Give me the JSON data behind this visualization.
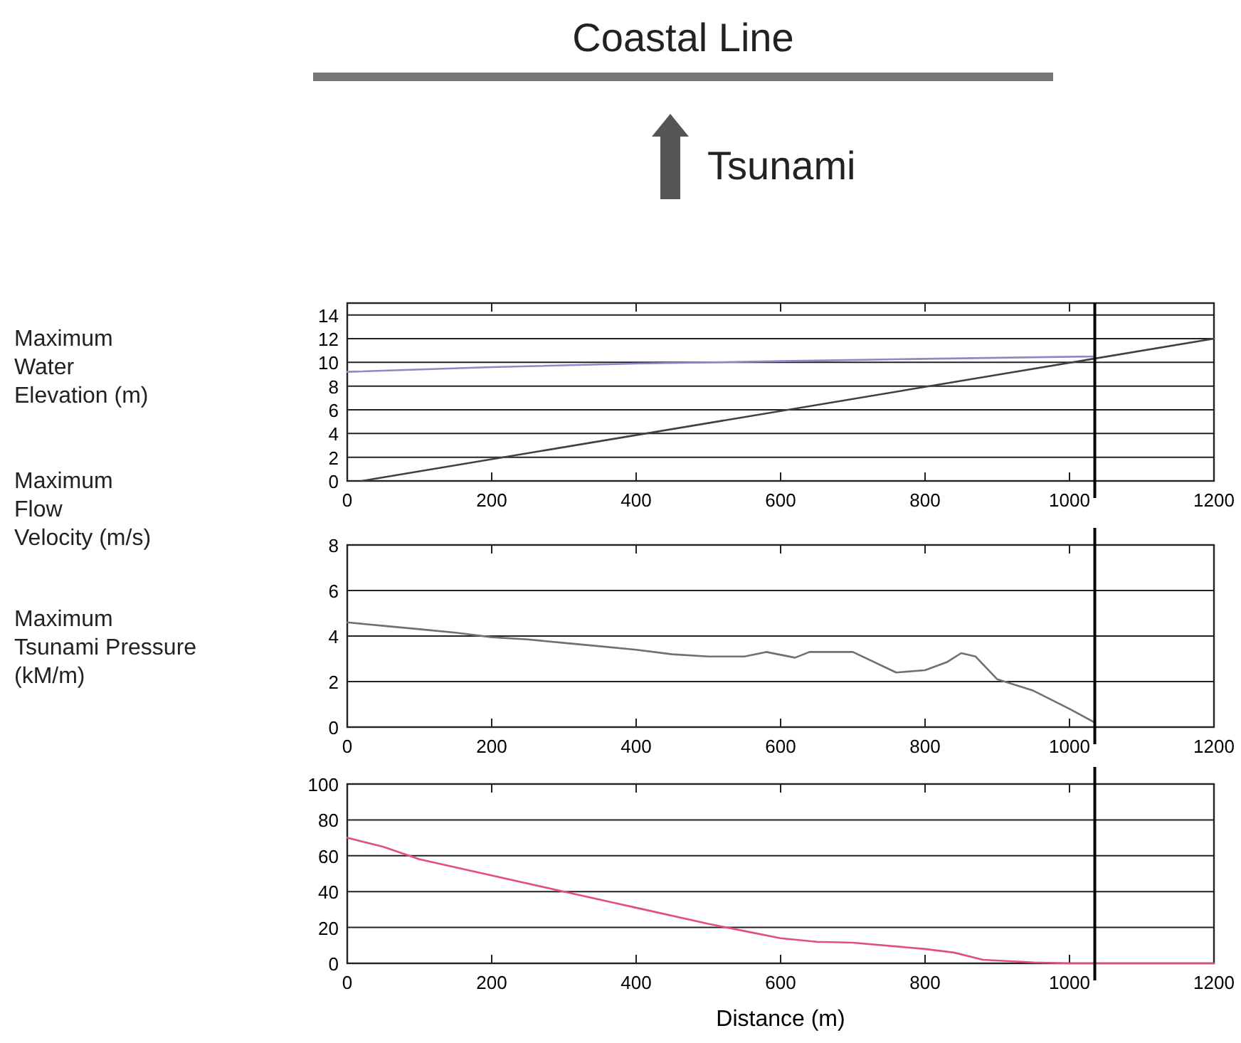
{
  "chart_data": [
    {
      "type": "line",
      "ylabel": "Maximum Water Elevation (m)",
      "annotations": [
        "Coastal Line",
        "Tsunami"
      ],
      "xlim": [
        0,
        1200
      ],
      "xticks": [
        0,
        200,
        400,
        600,
        800,
        1000,
        1200
      ],
      "ylim": [
        0,
        15
      ],
      "yticks": [
        0,
        2,
        4,
        6,
        8,
        10,
        12,
        14
      ],
      "grid": "y",
      "marker": "none",
      "line_style": "solid",
      "series": [
        {
          "color": "#8a8ac8",
          "x": [
            0,
            200,
            400,
            600,
            800,
            1035
          ],
          "values": [
            9.2,
            9.6,
            9.9,
            10.1,
            10.3,
            10.5
          ]
        },
        {
          "color": "#404040",
          "x": [
            20,
            1200
          ],
          "values": [
            0,
            12
          ]
        }
      ],
      "ref_lines": [
        {
          "axis": "x",
          "value": 1035,
          "color": "#000000"
        }
      ]
    },
    {
      "type": "line",
      "ylabel": "Maximum Flow Velocity (m/s)",
      "xlim": [
        0,
        1200
      ],
      "xticks": [
        0,
        200,
        400,
        600,
        800,
        1000,
        1200
      ],
      "ylim": [
        0,
        8
      ],
      "yticks": [
        0,
        2,
        4,
        6,
        8
      ],
      "grid": "y",
      "marker": "none",
      "line_style": "solid",
      "series": [
        {
          "color": "#707070",
          "x": [
            0,
            50,
            100,
            150,
            200,
            250,
            300,
            350,
            400,
            450,
            500,
            550,
            580,
            620,
            640,
            700,
            760,
            800,
            830,
            850,
            870,
            900,
            950,
            1000,
            1035
          ],
          "values": [
            4.6,
            4.45,
            4.3,
            4.15,
            3.95,
            3.85,
            3.7,
            3.55,
            3.4,
            3.2,
            3.1,
            3.1,
            3.3,
            3.05,
            3.3,
            3.3,
            2.4,
            2.5,
            2.85,
            3.25,
            3.1,
            2.1,
            1.6,
            0.8,
            0.2
          ]
        }
      ],
      "ref_lines": [
        {
          "axis": "x",
          "value": 1035,
          "color": "#000000"
        }
      ]
    },
    {
      "type": "line",
      "ylabel": "Maximum Tsunami Pressure (kM/m)",
      "xlabel": "Distance (m)",
      "xlim": [
        0,
        1200
      ],
      "xticks": [
        0,
        200,
        400,
        600,
        800,
        1000,
        1200
      ],
      "ylim": [
        0,
        100
      ],
      "yticks": [
        0,
        20,
        40,
        60,
        80,
        100
      ],
      "grid": "y",
      "marker": "none",
      "line_style": "solid",
      "series": [
        {
          "color": "#e0507a",
          "x": [
            0,
            50,
            100,
            200,
            300,
            400,
            500,
            550,
            600,
            650,
            700,
            800,
            840,
            880,
            950,
            1000,
            1200
          ],
          "values": [
            70,
            65,
            58,
            49,
            40,
            31,
            22,
            18,
            14,
            12,
            11.5,
            8,
            6,
            2,
            0.5,
            0,
            0
          ]
        }
      ],
      "ref_lines": [
        {
          "axis": "x",
          "value": 1035,
          "color": "#000000"
        }
      ]
    }
  ]
}
